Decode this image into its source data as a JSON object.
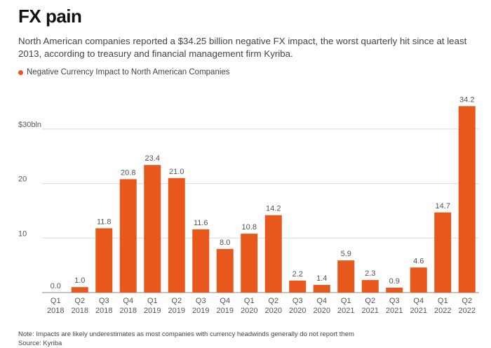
{
  "chart_data": {
    "type": "bar",
    "title": "FX pain",
    "subtitle": "North American companies reported a $34.25 billion negative FX impact, the worst quarterly hit since at least 2013, according to treasury and financial management firm Kyriba.",
    "legend": "Negative Currency Impact to North American Companies",
    "bar_color": "#e8571b",
    "categories": [
      [
        "Q1",
        "2018"
      ],
      [
        "Q2",
        "2018"
      ],
      [
        "Q3",
        "2018"
      ],
      [
        "Q4",
        "2018"
      ],
      [
        "Q1",
        "2019"
      ],
      [
        "Q2",
        "2019"
      ],
      [
        "Q3",
        "2019"
      ],
      [
        "Q4",
        "2019"
      ],
      [
        "Q1",
        "2020"
      ],
      [
        "Q2",
        "2020"
      ],
      [
        "Q3",
        "2020"
      ],
      [
        "Q4",
        "2020"
      ],
      [
        "Q1",
        "2021"
      ],
      [
        "Q2",
        "2021"
      ],
      [
        "Q3",
        "2021"
      ],
      [
        "Q4",
        "2021"
      ],
      [
        "Q1",
        "2022"
      ],
      [
        "Q2",
        "2022"
      ]
    ],
    "values": [
      0.0,
      1.0,
      11.8,
      20.8,
      23.4,
      21.0,
      11.6,
      8.0,
      10.8,
      14.2,
      2.2,
      1.4,
      5.9,
      2.3,
      0.9,
      4.6,
      14.7,
      34.2
    ],
    "labels": [
      "0.0",
      "1.0",
      "11.8",
      "20.8",
      "23.4",
      "21.0",
      "11.6",
      "8.0",
      "10.8",
      "14.2",
      "2.2",
      "1.4",
      "5.9",
      "2.3",
      "0.9",
      "4.6",
      "14.7",
      "34.2"
    ],
    "y_ticks": [
      {
        "value": 10,
        "label": "10"
      },
      {
        "value": 20,
        "label": "20"
      },
      {
        "value": 30,
        "label": "$30bln"
      }
    ],
    "ylim": [
      0,
      35
    ],
    "grid": true
  },
  "footer": {
    "note": "Note: Impacts are likely underestimates as most companies with currency headwinds generally do not report them",
    "source": "Source: Kyriba"
  }
}
